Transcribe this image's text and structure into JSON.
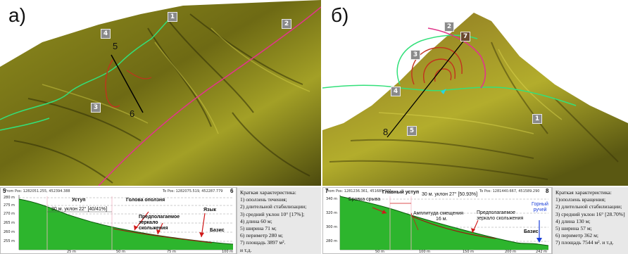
{
  "panel_a": {
    "letter": "а)",
    "markers": [
      "1",
      "2",
      "3",
      "4"
    ],
    "points": [
      "5",
      "6"
    ]
  },
  "panel_b": {
    "letter": "б)",
    "markers": [
      "1",
      "2",
      "3",
      "4",
      "5",
      "7"
    ],
    "points": [
      "8"
    ]
  },
  "profile_a": {
    "from_pos": "From Pos: 1282051.255, 452394.388",
    "to_pos": "To Pos: 1282075.519, 452287.779",
    "start_label": "5",
    "end_label": "6",
    "y_ticks": [
      "280 m",
      "275 m",
      "270 m",
      "265 m",
      "260 m",
      "255 m"
    ],
    "x_ticks": [
      "25 m",
      "50 m",
      "75 m",
      "100 m"
    ],
    "annotations": {
      "ledge": "Уступ",
      "slope": "30 м. уклон 22° [40/41%]",
      "head": "Голова оползня",
      "plane": "Предполагаемое зеркало скольжения",
      "tongue": "Язык",
      "base": "Базис"
    }
  },
  "profile_b": {
    "from_pos": "From Pos: 1281236.361, 451685.727",
    "to_pos": "To Pos: 1281440.667, 451589.290",
    "start_label": "7",
    "end_label": "8",
    "y_ticks": [
      "340 m",
      "320 m",
      "300 m",
      "280 m"
    ],
    "x_ticks": [
      "50 m",
      "100 m",
      "150 m",
      "200 m",
      "242 m"
    ],
    "annotations": {
      "main_ledge": "Главный уступ",
      "slope": "30 м. уклон 27° [50.93%]",
      "brow": "Бровка срыва",
      "amplitude": "Амплитуда смещения",
      "amplitude_value": "16 м.",
      "plane": "Предполагаемое зеркало скольжения",
      "stream": "Горный ручей",
      "base": "Базис"
    }
  },
  "characteristics_a": {
    "title": "Краткая характеристика:",
    "items": [
      "1) оползень течения;",
      "2) длительной стабилизации;",
      "3) средний уклон 10° [17%];",
      "4) длина 60 м;",
      "5) ширина 71 м;",
      "6) периметр 280 м;",
      "7) площадь 3897 м².",
      "и т.д."
    ]
  },
  "characteristics_b": {
    "title": "Краткая характеристика:",
    "items": [
      "1)оползень вращения;",
      "2) длительной стабилизации;",
      "3) средний уклон 16° [28.70%]",
      "4) длина 130 м;",
      "5) ширина 57 м;",
      "6) периметр 362 м;",
      "7) площадь 7544 м². и т.д."
    ]
  },
  "colors": {
    "terrain_dark": "#3f3f0a",
    "terrain_light": "#b9b52a",
    "boundary_green": "#33e07a",
    "road_magenta": "#e0368a",
    "scarp_red": "#c2321e",
    "profile_fill": "#2db52d",
    "slip_plane": "#a01010"
  }
}
